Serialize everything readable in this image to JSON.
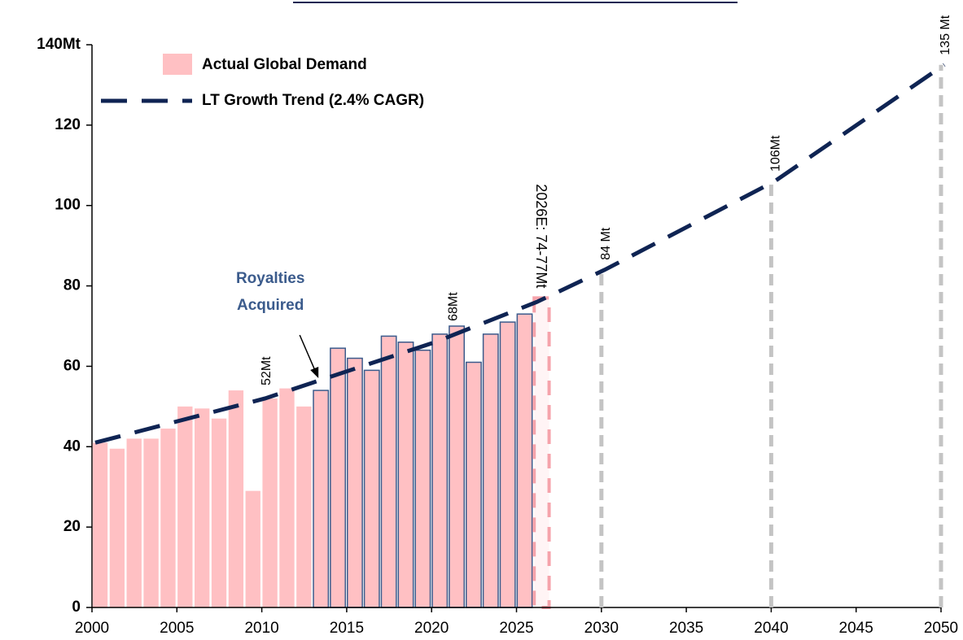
{
  "chart_data": {
    "type": "bar",
    "categories": [
      2000,
      2001,
      2002,
      2003,
      2004,
      2005,
      2006,
      2007,
      2008,
      2009,
      2010,
      2011,
      2012,
      2013,
      2014,
      2015,
      2016,
      2017,
      2018,
      2019,
      2020,
      2021,
      2022,
      2023,
      2024,
      2025
    ],
    "series": [
      {
        "name": "Actual Global Demand",
        "color": "#ffc0c3",
        "values": [
          41,
          39.5,
          42,
          42,
          44.5,
          50,
          49.5,
          47,
          54,
          29,
          52,
          54.5,
          50,
          54,
          64.5,
          62,
          59,
          67.5,
          66,
          64,
          68,
          70,
          61,
          68,
          71,
          73
        ]
      },
      {
        "name": "LT Growth Trend (2.4% CAGR)",
        "color": "#0f2453",
        "type": "line",
        "x": [
          2000,
          2010,
          2020,
          2026,
          2030,
          2040,
          2050
        ],
        "values": [
          41,
          52,
          66,
          76,
          84,
          106,
          135
        ]
      }
    ],
    "royalties_acquired": {
      "label": [
        "Royalties",
        "Acquired"
      ],
      "x": 2013,
      "color": "#3b5b8c"
    },
    "estimate": {
      "x": 2026,
      "value": 77,
      "label": "2026E: 74-77Mt"
    },
    "annotations": [
      {
        "x": 2010,
        "value": 52,
        "label": "52Mt"
      },
      {
        "x": 2021,
        "value": 68,
        "label": "68Mt"
      }
    ],
    "reference_lines": [
      {
        "x": 2030,
        "value": 84,
        "label": "84 Mt"
      },
      {
        "x": 2040,
        "value": 106,
        "label": "106Mt"
      },
      {
        "x": 2050,
        "value": 135,
        "label": "135 Mt"
      }
    ],
    "xlim": [
      2000,
      2050
    ],
    "xticks": [
      2000,
      2005,
      2010,
      2015,
      2020,
      2025,
      2030,
      2035,
      2040,
      2045,
      2050
    ],
    "ylim": [
      0,
      140
    ],
    "yticks": [
      0,
      20,
      40,
      60,
      80,
      100,
      120,
      {
        "value": 140,
        "label": "140Mt"
      }
    ],
    "legend": "upper left"
  }
}
